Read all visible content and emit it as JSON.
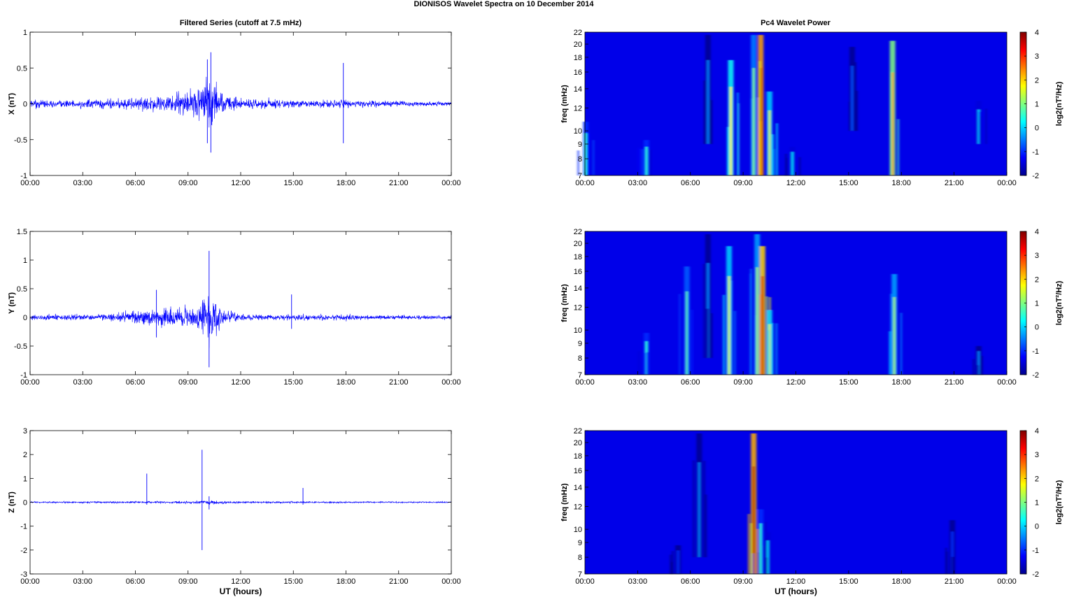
{
  "figure": {
    "title": "DIONISOS Wavelet Spectra on 10 December  2014",
    "left_title": "Filtered Series (cutoff at 7.5 mHz)",
    "right_title": "Pc4 Wavelet Power"
  },
  "chart_data": [
    {
      "type": "line",
      "ylabel": "X (nT)",
      "xlabel": "",
      "ylim": [
        -1,
        1
      ],
      "yticks": [
        "-1",
        "-0.5",
        "0",
        "0.5",
        "1"
      ],
      "xticks": [
        "00:00",
        "03:00",
        "06:00",
        "09:00",
        "12:00",
        "15:00",
        "18:00",
        "21:00",
        "00:00"
      ],
      "xlim_hours": [
        0,
        24
      ],
      "color": "#0000ff",
      "envelope": {
        "hours": [
          0,
          0.5,
          1,
          2,
          3,
          4,
          5,
          6,
          7,
          8,
          9,
          9.5,
          10,
          10.3,
          10.7,
          11,
          12,
          13,
          14,
          15,
          16,
          17,
          17.8,
          18,
          19,
          20,
          21,
          22,
          23,
          24
        ],
        "amplitude_nT": [
          0.08,
          0.12,
          0.08,
          0.09,
          0.1,
          0.11,
          0.12,
          0.13,
          0.2,
          0.22,
          0.28,
          0.4,
          0.55,
          0.62,
          0.38,
          0.22,
          0.12,
          0.1,
          0.11,
          0.1,
          0.09,
          0.09,
          0.1,
          0.09,
          0.08,
          0.07,
          0.07,
          0.06,
          0.06,
          0.05
        ]
      },
      "spikes": [
        {
          "hour": 10.3,
          "min_nT": -0.68,
          "max_nT": 0.72
        },
        {
          "hour": 17.85,
          "min_nT": -0.55,
          "max_nT": 0.57
        },
        {
          "hour": 10.1,
          "min_nT": -0.55,
          "max_nT": 0.62
        }
      ]
    },
    {
      "type": "line",
      "ylabel": "Y (nT)",
      "xlabel": "",
      "ylim": [
        -1,
        1.5
      ],
      "yticks": [
        "-1",
        "-0.5",
        "0",
        "0.5",
        "1",
        "1.5"
      ],
      "xticks": [
        "00:00",
        "03:00",
        "06:00",
        "09:00",
        "12:00",
        "15:00",
        "18:00",
        "21:00",
        "00:00"
      ],
      "xlim_hours": [
        0,
        24
      ],
      "color": "#0000ff",
      "envelope": {
        "hours": [
          0,
          1,
          2,
          3,
          4,
          5,
          6,
          7,
          8,
          9,
          9.5,
          10,
          10.3,
          10.7,
          11,
          12,
          13,
          14,
          15,
          16,
          17,
          18,
          19,
          20,
          21,
          22,
          23,
          24
        ],
        "amplitude_nT": [
          0.07,
          0.08,
          0.08,
          0.09,
          0.1,
          0.14,
          0.18,
          0.28,
          0.3,
          0.26,
          0.35,
          0.55,
          0.7,
          0.45,
          0.22,
          0.1,
          0.08,
          0.08,
          0.09,
          0.08,
          0.08,
          0.1,
          0.07,
          0.06,
          0.06,
          0.06,
          0.06,
          0.06
        ]
      },
      "spikes": [
        {
          "hour": 10.2,
          "min_nT": -0.87,
          "max_nT": 1.16
        },
        {
          "hour": 7.2,
          "min_nT": -0.35,
          "max_nT": 0.48
        },
        {
          "hour": 14.9,
          "min_nT": -0.2,
          "max_nT": 0.4
        }
      ]
    },
    {
      "type": "line",
      "ylabel": "Z (nT)",
      "xlabel": "UT (hours)",
      "ylim": [
        -3,
        3
      ],
      "yticks": [
        "-3",
        "-2",
        "-1",
        "0",
        "1",
        "2",
        "3"
      ],
      "xticks": [
        "00:00",
        "03:00",
        "06:00",
        "09:00",
        "12:00",
        "15:00",
        "18:00",
        "21:00",
        "00:00"
      ],
      "xlim_hours": [
        0,
        24
      ],
      "color": "#0000ff",
      "envelope": {
        "hours": [
          0,
          3,
          6,
          9,
          10,
          11,
          12,
          15,
          18,
          21,
          24
        ],
        "amplitude_nT": [
          0.05,
          0.06,
          0.07,
          0.08,
          0.15,
          0.1,
          0.07,
          0.07,
          0.06,
          0.05,
          0.05
        ]
      },
      "spikes": [
        {
          "hour": 6.65,
          "min_nT": -0.1,
          "max_nT": 1.2
        },
        {
          "hour": 9.8,
          "min_nT": -2.0,
          "max_nT": 2.2
        },
        {
          "hour": 15.55,
          "min_nT": -0.1,
          "max_nT": 0.6
        },
        {
          "hour": 10.2,
          "min_nT": -0.3,
          "max_nT": 0.25
        }
      ]
    },
    {
      "type": "heatmap",
      "ylabel": "freq (mHz)",
      "xlabel": "",
      "xticks": [
        "00:00",
        "03:00",
        "06:00",
        "09:00",
        "12:00",
        "15:00",
        "18:00",
        "21:00",
        "00:00"
      ],
      "yticks": [
        "7",
        "8",
        "9",
        "10",
        "12",
        "14",
        "16",
        "18",
        "20",
        "22"
      ],
      "yscale": "log",
      "ylim_mHz": [
        7,
        22
      ],
      "colorbar": {
        "label": "log2(nT²/Hz)",
        "ticks": [
          "-2",
          "-1",
          "0",
          "1",
          "2",
          "3",
          "4"
        ],
        "range": [
          -2,
          4
        ]
      },
      "bursts": [
        {
          "hour": 0.05,
          "fmin": 7,
          "fmax": 11,
          "level": 0.5
        },
        {
          "hour": 3.5,
          "fmin": 7,
          "fmax": 9.5,
          "level": 0.5
        },
        {
          "hour": 7.0,
          "fmin": 9,
          "fmax": 22,
          "level": -0.5
        },
        {
          "hour": 8.3,
          "fmin": 7,
          "fmax": 18,
          "level": 1.8
        },
        {
          "hour": 9.6,
          "fmin": 7,
          "fmax": 22,
          "level": 1.0
        },
        {
          "hour": 10.0,
          "fmin": 7,
          "fmax": 22,
          "level": 3.8
        },
        {
          "hour": 10.5,
          "fmin": 7,
          "fmax": 14,
          "level": 1.5
        },
        {
          "hour": 11.8,
          "fmin": 7,
          "fmax": 9,
          "level": 0.0
        },
        {
          "hour": 15.2,
          "fmin": 10,
          "fmax": 20,
          "level": -0.8
        },
        {
          "hour": 17.5,
          "fmin": 7,
          "fmax": 21,
          "level": 2.5
        },
        {
          "hour": 22.4,
          "fmin": 9,
          "fmax": 13,
          "level": 0.0
        }
      ]
    },
    {
      "type": "heatmap",
      "ylabel": "freq (mHz)",
      "xlabel": "",
      "xticks": [
        "00:00",
        "03:00",
        "06:00",
        "09:00",
        "12:00",
        "15:00",
        "18:00",
        "21:00",
        "00:00"
      ],
      "yticks": [
        "7",
        "8",
        "9",
        "10",
        "12",
        "14",
        "16",
        "18",
        "20",
        "22"
      ],
      "yscale": "log",
      "ylim_mHz": [
        7,
        22
      ],
      "colorbar": {
        "label": "log2(nT²/Hz)",
        "ticks": [
          "-2",
          "-1",
          "0",
          "1",
          "2",
          "3",
          "4"
        ],
        "range": [
          -2,
          4
        ]
      },
      "bursts": [
        {
          "hour": 3.5,
          "fmin": 7,
          "fmax": 10,
          "level": 0.5
        },
        {
          "hour": 5.8,
          "fmin": 7,
          "fmax": 17,
          "level": 0.8
        },
        {
          "hour": 7.0,
          "fmin": 8,
          "fmax": 22,
          "level": -0.5
        },
        {
          "hour": 8.2,
          "fmin": 7,
          "fmax": 20,
          "level": 1.5
        },
        {
          "hour": 9.8,
          "fmin": 7,
          "fmax": 22,
          "level": 1.2
        },
        {
          "hour": 10.1,
          "fmin": 7,
          "fmax": 20,
          "level": 3.5
        },
        {
          "hour": 10.5,
          "fmin": 7,
          "fmax": 12,
          "level": 1.5
        },
        {
          "hour": 17.6,
          "fmin": 7,
          "fmax": 16,
          "level": 1.2
        },
        {
          "hour": 22.4,
          "fmin": 7,
          "fmax": 9,
          "level": -0.5
        }
      ]
    },
    {
      "type": "heatmap",
      "ylabel": "freq (mHz)",
      "xlabel": "UT (hours)",
      "xticks": [
        "00:00",
        "03:00",
        "06:00",
        "09:00",
        "12:00",
        "15:00",
        "18:00",
        "21:00",
        "00:00"
      ],
      "yticks": [
        "7",
        "8",
        "9",
        "10",
        "12",
        "14",
        "16",
        "18",
        "20",
        "22"
      ],
      "yscale": "log",
      "ylim_mHz": [
        7,
        22
      ],
      "colorbar": {
        "label": "log2(nT²/Hz)",
        "ticks": [
          "-2",
          "-1",
          "0",
          "1",
          "2",
          "3",
          "4"
        ],
        "range": [
          -2,
          4
        ]
      },
      "bursts": [
        {
          "hour": 5.3,
          "fmin": 7,
          "fmax": 9,
          "level": -1.0
        },
        {
          "hour": 6.5,
          "fmin": 8,
          "fmax": 22,
          "level": -0.5
        },
        {
          "hour": 9.6,
          "fmin": 7,
          "fmax": 22,
          "level": 3.7
        },
        {
          "hour": 10.0,
          "fmin": 7,
          "fmax": 12,
          "level": 0.5
        },
        {
          "hour": 10.4,
          "fmin": 7,
          "fmax": 10,
          "level": 0.0
        },
        {
          "hour": 20.9,
          "fmin": 7,
          "fmax": 11,
          "level": -1.0
        }
      ]
    }
  ]
}
